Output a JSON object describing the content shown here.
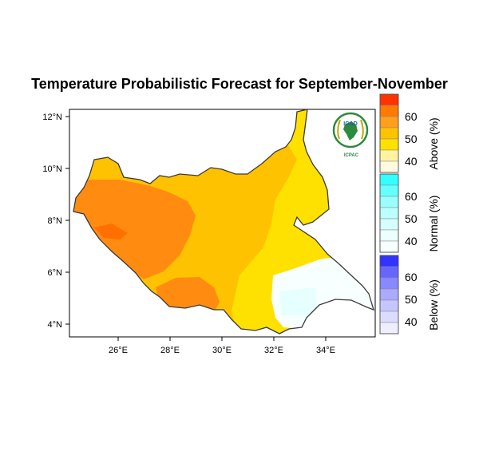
{
  "title": "Temperature Probabilistic Forecast for September-November",
  "map": {
    "lat_ticks": [
      "12°N",
      "10°N",
      "8°N",
      "6°N",
      "4°N"
    ],
    "lon_ticks": [
      "26°E",
      "28°E",
      "30°E",
      "32°E",
      "34°E"
    ]
  },
  "logo": {
    "org_top": "IGAD",
    "org_bottom": "ICPAC"
  },
  "colorbar": {
    "above": {
      "label": "Above (%)",
      "ticks": [
        "60",
        "50",
        "40"
      ],
      "colors": [
        "#ff3300",
        "#ff7a00",
        "#ff9f1a",
        "#ffc200",
        "#ffe100",
        "#fff3a0",
        "#fffbe0"
      ]
    },
    "normal": {
      "label": "Normal (%)",
      "ticks": [
        "60",
        "50",
        "40"
      ],
      "colors": [
        "#33ffff",
        "#66ffff",
        "#99ffff",
        "#bbffff",
        "#d6ffff",
        "#ebffff",
        "#f7ffff"
      ]
    },
    "below": {
      "label": "Below (%)",
      "ticks": [
        "60",
        "50",
        "40"
      ],
      "colors": [
        "#3333ff",
        "#6666ff",
        "#8888ff",
        "#aaaaff",
        "#c6c6ff",
        "#dcdcff",
        "#eeeeff"
      ]
    }
  }
}
